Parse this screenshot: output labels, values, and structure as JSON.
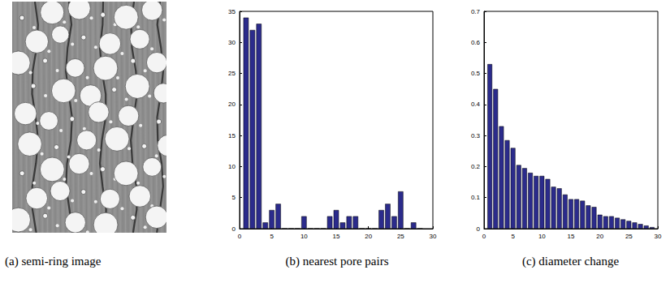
{
  "image": {
    "title": "(a) semi-ring image"
  },
  "chart_data": [
    {
      "type": "bar",
      "title": "(b) nearest pore pairs",
      "x": [
        1,
        2,
        3,
        4,
        5,
        6,
        7,
        8,
        9,
        10,
        11,
        12,
        13,
        14,
        15,
        16,
        17,
        18,
        19,
        20,
        21,
        22,
        23,
        24,
        25,
        26,
        27,
        28
      ],
      "values": [
        34,
        32,
        33,
        1,
        3,
        4,
        0,
        0,
        0,
        2,
        0,
        0,
        0,
        2,
        3,
        1,
        2,
        2,
        0,
        0,
        0,
        3,
        4,
        2,
        6,
        0,
        1,
        0
      ],
      "color": "#2b2b8c",
      "xlim": [
        0,
        30
      ],
      "xticks": [
        0,
        5,
        10,
        15,
        20,
        25,
        30
      ],
      "ylim": [
        0,
        35
      ],
      "yticks": [
        0,
        5,
        10,
        15,
        20,
        25,
        30,
        35
      ]
    },
    {
      "type": "bar",
      "title": "(c) diameter change",
      "x": [
        1,
        2,
        3,
        4,
        5,
        6,
        7,
        8,
        9,
        10,
        11,
        12,
        13,
        14,
        15,
        16,
        17,
        18,
        19,
        20,
        21,
        22,
        23,
        24,
        25,
        26,
        27,
        28,
        29
      ],
      "values": [
        0.53,
        0.45,
        0.33,
        0.285,
        0.26,
        0.205,
        0.195,
        0.18,
        0.17,
        0.17,
        0.16,
        0.135,
        0.13,
        0.11,
        0.095,
        0.095,
        0.09,
        0.075,
        0.07,
        0.045,
        0.04,
        0.04,
        0.035,
        0.03,
        0.025,
        0.02,
        0.015,
        0.01,
        0.005
      ],
      "color": "#2b2b8c",
      "xlim": [
        0,
        30
      ],
      "xticks": [
        0,
        5,
        10,
        15,
        20,
        25,
        30
      ],
      "ylim": [
        0,
        0.7
      ],
      "yticks": [
        0,
        0.1,
        0.2,
        0.3,
        0.4,
        0.5,
        0.6,
        0.7
      ]
    }
  ]
}
